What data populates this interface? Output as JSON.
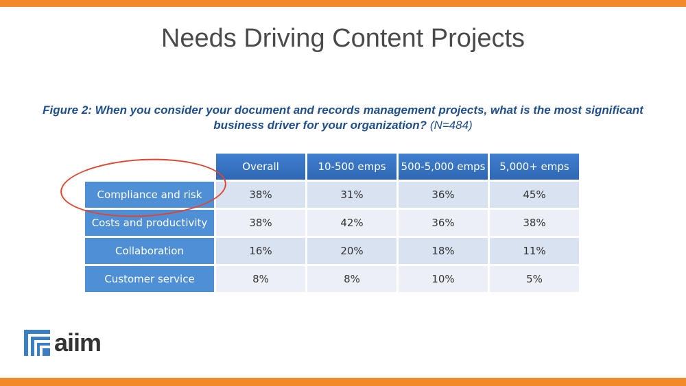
{
  "slide": {
    "title": "Needs Driving Content Projects"
  },
  "figure": {
    "caption": "Figure 2: When you consider your document and records management projects, what is the most significant business driver for your organization?",
    "sample": "(N=484)"
  },
  "table": {
    "columns": [
      "Overall",
      "10-500 emps",
      "500-5,000 emps",
      "5,000+ emps"
    ],
    "rows": [
      {
        "label": "Compliance and risk",
        "values": [
          "38%",
          "31%",
          "36%",
          "45%"
        ]
      },
      {
        "label": "Costs and productivity",
        "values": [
          "38%",
          "42%",
          "36%",
          "38%"
        ]
      },
      {
        "label": "Collaboration",
        "values": [
          "16%",
          "20%",
          "18%",
          "11%"
        ]
      },
      {
        "label": "Customer service",
        "values": [
          "8%",
          "8%",
          "10%",
          "5%"
        ]
      }
    ]
  },
  "highlight": {
    "target_row": "Compliance and risk",
    "color": "#e0452f"
  },
  "logo": {
    "text": "aiim",
    "icon": "aiim-logo-mark-icon"
  },
  "colors": {
    "accent_bar": "#f28a2a",
    "header": "#2f68b4",
    "row_label": "#4f8fd6",
    "caption": "#1f4e8c"
  }
}
